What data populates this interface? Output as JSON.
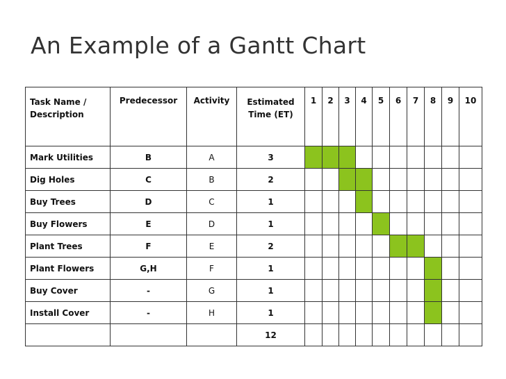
{
  "title": "An Example of a Gantt Chart",
  "table": {
    "header": {
      "task": [
        "Task Name /",
        "Description"
      ],
      "predecessor": "Predecessor",
      "activity": "Activity",
      "estimated_time": [
        "Estimated",
        "Time (ET)"
      ],
      "periods": [
        1,
        2,
        3,
        4,
        5,
        6,
        7,
        8,
        9,
        10
      ]
    },
    "rows": [
      {
        "task": "Mark Utilities",
        "predecessor": "B",
        "activity": "A",
        "time": 3,
        "shaded": [
          1,
          2,
          3
        ]
      },
      {
        "task": "Dig Holes",
        "predecessor": "C",
        "activity": "B",
        "time": 2,
        "shaded": [
          3,
          4
        ]
      },
      {
        "task": "Buy Trees",
        "predecessor": "D",
        "activity": "C",
        "time": 1,
        "shaded": [
          4
        ]
      },
      {
        "task": "Buy Flowers",
        "predecessor": "E",
        "activity": "D",
        "time": 1,
        "shaded": [
          5
        ]
      },
      {
        "task": "Plant Trees",
        "predecessor": "F",
        "activity": "E",
        "time": 2,
        "shaded": [
          6,
          7
        ]
      },
      {
        "task": "Plant Flowers",
        "predecessor": "G,H",
        "activity": "F",
        "time": 1,
        "shaded": [
          8
        ]
      },
      {
        "task": "Buy Cover",
        "predecessor": "-",
        "activity": "G",
        "time": 1,
        "shaded": [
          8
        ]
      },
      {
        "task": "Install Cover",
        "predecessor": "-",
        "activity": "H",
        "time": 1,
        "shaded": [
          8
        ]
      }
    ],
    "total": 12
  }
}
